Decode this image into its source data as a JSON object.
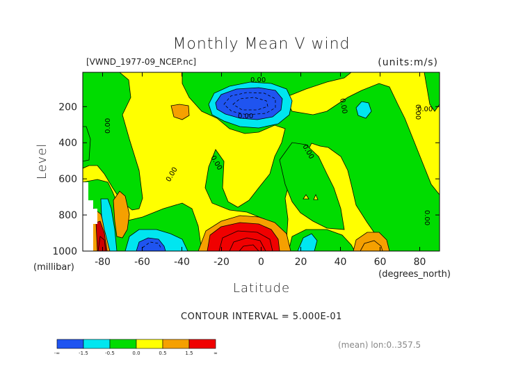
{
  "chart_data": {
    "type": "heatmap",
    "title": "Monthly Mean V wind",
    "file_label": "[VWND_1977-09_NCEP.nc]",
    "units_label": "(units:m/s)",
    "xlabel": "Latitude",
    "x_units": "(degrees_north)",
    "ylabel": "Level",
    "y_units": "(millibar)",
    "xlim": [
      -90,
      90
    ],
    "ylim": [
      1000,
      10
    ],
    "x_ticks": [
      -80,
      -60,
      -40,
      -20,
      0,
      20,
      40,
      60,
      80
    ],
    "y_ticks": [
      200,
      400,
      600,
      800,
      1000
    ],
    "contour_interval_text": "CONTOUR INTERVAL = 5.000E-01",
    "mean_text": "(mean) lon:0..357.5",
    "contour_labels": [
      "0.00",
      "0.00",
      "0.00",
      "0.00",
      "0.00",
      "0.00",
      "0.00",
      "0.00",
      "0.00",
      "0.00"
    ],
    "colorbar": {
      "bins": [
        {
          "range": [
            -1000000000.0,
            -1.5
          ],
          "color": "#1f54f0"
        },
        {
          "range": [
            -1.5,
            -0.5
          ],
          "color": "#00e6f0"
        },
        {
          "range": [
            -0.5,
            0.0
          ],
          "color": "#00dc00"
        },
        {
          "range": [
            0.0,
            0.5
          ],
          "color": "#ffff00"
        },
        {
          "range": [
            0.5,
            1.5
          ],
          "color": "#f5a000"
        },
        {
          "range": [
            1.5,
            1000000000.0
          ],
          "color": "#f00000"
        }
      ],
      "tick_labels": [
        "-∞",
        "-1.5",
        "-0.5",
        "0.0",
        "0.5",
        "1.5",
        "∞"
      ]
    },
    "regions": [
      {
        "level": "neg-strong",
        "polygon": [
          [
            -12,
            160
          ],
          [
            -8,
            140
          ],
          [
            2,
            132
          ],
          [
            10,
            140
          ],
          [
            12,
            165
          ],
          [
            8,
            195
          ],
          [
            -5,
            210
          ],
          [
            -18,
            205
          ],
          [
            -25,
            185
          ],
          [
            -22,
            170
          ]
        ]
      },
      {
        "level": "pos-strong",
        "polygon": [
          [
            -30,
            1000
          ],
          [
            -29,
            960
          ],
          [
            -22,
            920
          ],
          [
            -12,
            895
          ],
          [
            0,
            890
          ],
          [
            8,
            905
          ],
          [
            11,
            940
          ],
          [
            10,
            1000
          ]
        ]
      },
      {
        "level": "pos-strong",
        "polygon": [
          [
            -90,
            1000
          ],
          [
            -90,
            880
          ],
          [
            -84,
            860
          ],
          [
            -80,
            900
          ],
          [
            -79,
            960
          ],
          [
            -78,
            1000
          ]
        ]
      }
    ]
  }
}
